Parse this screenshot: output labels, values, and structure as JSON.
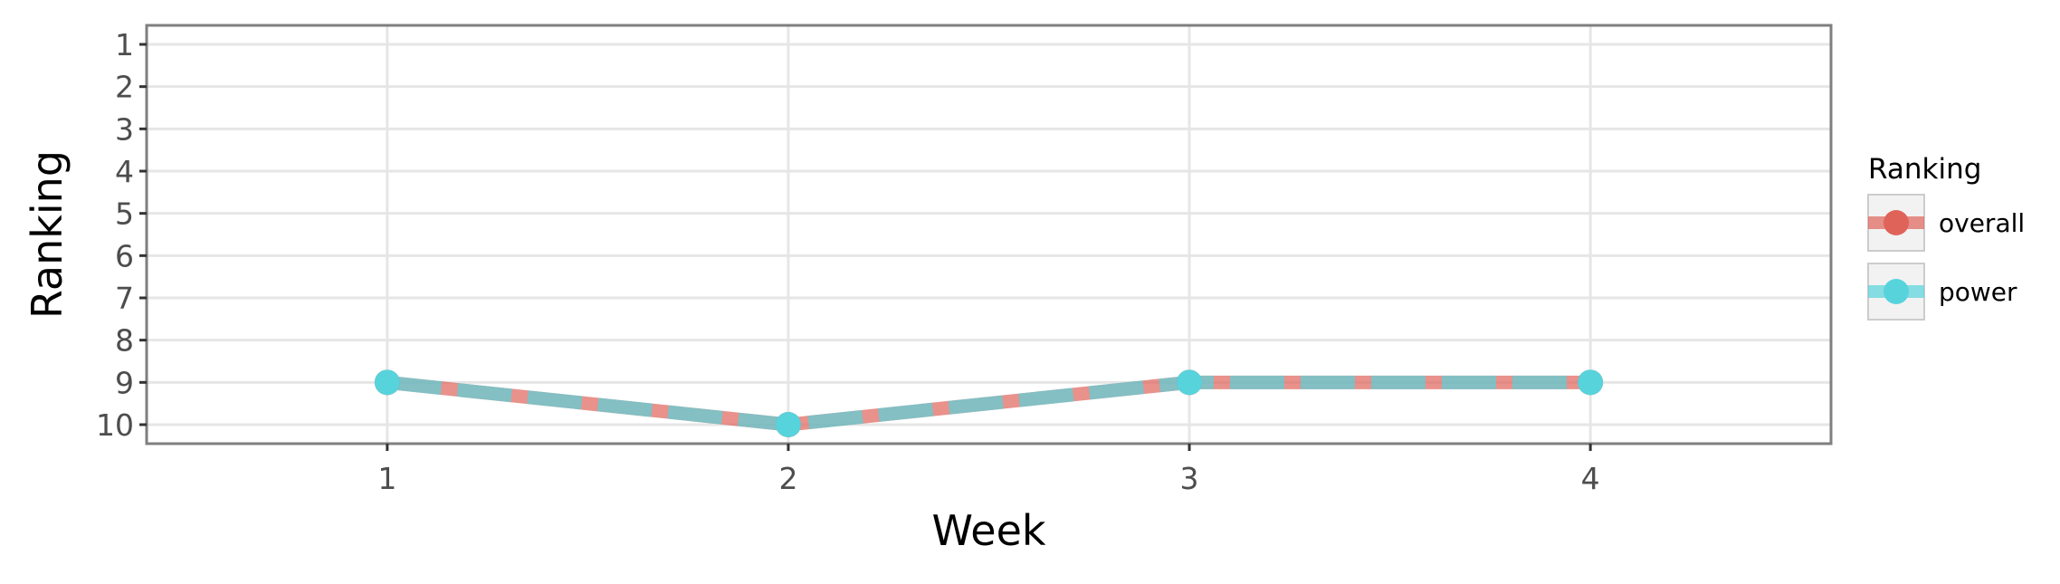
{
  "chart_data": {
    "type": "line",
    "xlabel": "Week",
    "ylabel": "Ranking",
    "x": [
      1,
      2,
      3,
      4
    ],
    "xlim": [
      0.4,
      4.6
    ],
    "ylim": [
      10.45,
      0.55
    ],
    "y_reversed": true,
    "xticks": [
      "1",
      "2",
      "3",
      "4"
    ],
    "yticks": [
      "1",
      "2",
      "3",
      "4",
      "5",
      "6",
      "7",
      "8",
      "9",
      "10"
    ],
    "grid": true,
    "legend": {
      "title": "Ranking",
      "position": "right",
      "entries": [
        "overall",
        "power"
      ]
    },
    "series": [
      {
        "name": "overall",
        "values": [
          9,
          10,
          9,
          9
        ],
        "color": "#e0635a",
        "style": "solid"
      },
      {
        "name": "power",
        "values": [
          9,
          10,
          9,
          9
        ],
        "color": "#57d3dc",
        "style": "dashed"
      }
    ]
  }
}
